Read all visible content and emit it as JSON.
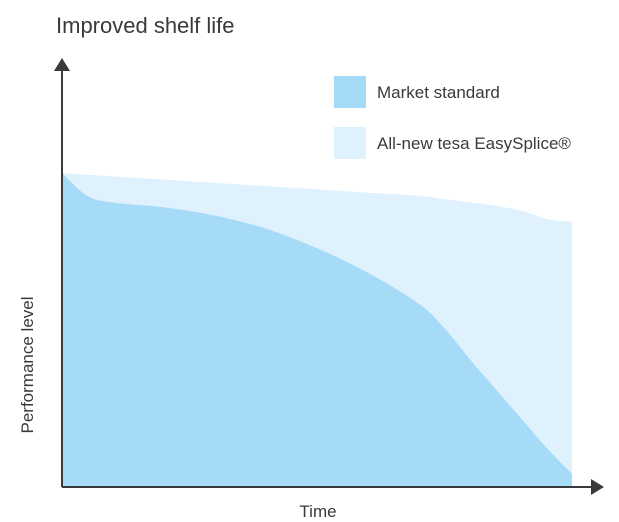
{
  "chart_data": {
    "type": "area",
    "title": "Improved shelf life",
    "xlabel": "Time",
    "ylabel": "Performance level",
    "x": [
      0,
      0.05,
      0.1,
      0.2,
      0.3,
      0.4,
      0.5,
      0.6,
      0.7,
      0.75,
      0.8,
      0.85,
      0.9,
      0.95,
      1.0
    ],
    "xlim": [
      0,
      1
    ],
    "ylim": [
      0,
      1
    ],
    "grid": false,
    "legend_position": "top-right",
    "series": [
      {
        "name": "Market standard",
        "color": "#a6dbf7",
        "values": [
          0.96,
          0.89,
          0.87,
          0.855,
          0.83,
          0.79,
          0.73,
          0.655,
          0.56,
          0.485,
          0.39,
          0.3,
          0.21,
          0.12,
          0.04
        ]
      },
      {
        "name": "All-new tesa EasySplice®",
        "color": "#def1fc",
        "values": [
          0.96,
          0.955,
          0.95,
          0.94,
          0.93,
          0.92,
          0.91,
          0.9,
          0.89,
          0.88,
          0.87,
          0.86,
          0.845,
          0.82,
          0.81
        ]
      }
    ]
  }
}
